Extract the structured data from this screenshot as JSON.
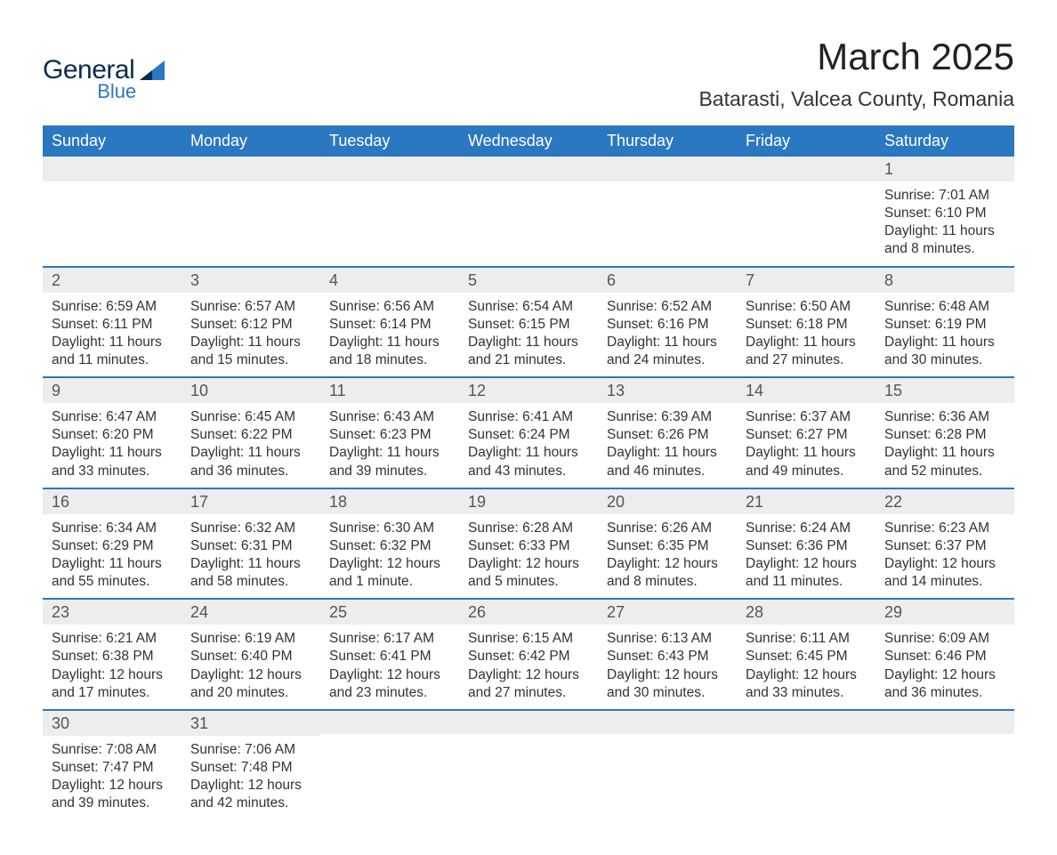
{
  "colors": {
    "header_bg": "#2b78c2",
    "header_text": "#ffffff",
    "bar_bg": "#ededed",
    "bar_border": "#2b78c2",
    "day_num_text": "#555555",
    "body_text": "#333333",
    "logo_dark": "#0b2b50",
    "logo_blue": "#2b78c2",
    "title_text": "#222222",
    "page_bg": "#ffffff"
  },
  "typography": {
    "month_title_size": 42,
    "location_size": 23,
    "header_size": 18,
    "daynum_size": 18,
    "detail_size": 15.5,
    "font_family": "Arial, Helvetica, sans-serif"
  },
  "logo": {
    "line1": "General",
    "line2": "Blue"
  },
  "title": "March 2025",
  "location": "Batarasti, Valcea County, Romania",
  "day_headers": [
    "Sunday",
    "Monday",
    "Tuesday",
    "Wednesday",
    "Thursday",
    "Friday",
    "Saturday"
  ],
  "weeks": [
    [
      null,
      null,
      null,
      null,
      null,
      null,
      {
        "n": "1",
        "sunrise": "Sunrise: 7:01 AM",
        "sunset": "Sunset: 6:10 PM",
        "daylight": "Daylight: 11 hours and 8 minutes."
      }
    ],
    [
      {
        "n": "2",
        "sunrise": "Sunrise: 6:59 AM",
        "sunset": "Sunset: 6:11 PM",
        "daylight": "Daylight: 11 hours and 11 minutes."
      },
      {
        "n": "3",
        "sunrise": "Sunrise: 6:57 AM",
        "sunset": "Sunset: 6:12 PM",
        "daylight": "Daylight: 11 hours and 15 minutes."
      },
      {
        "n": "4",
        "sunrise": "Sunrise: 6:56 AM",
        "sunset": "Sunset: 6:14 PM",
        "daylight": "Daylight: 11 hours and 18 minutes."
      },
      {
        "n": "5",
        "sunrise": "Sunrise: 6:54 AM",
        "sunset": "Sunset: 6:15 PM",
        "daylight": "Daylight: 11 hours and 21 minutes."
      },
      {
        "n": "6",
        "sunrise": "Sunrise: 6:52 AM",
        "sunset": "Sunset: 6:16 PM",
        "daylight": "Daylight: 11 hours and 24 minutes."
      },
      {
        "n": "7",
        "sunrise": "Sunrise: 6:50 AM",
        "sunset": "Sunset: 6:18 PM",
        "daylight": "Daylight: 11 hours and 27 minutes."
      },
      {
        "n": "8",
        "sunrise": "Sunrise: 6:48 AM",
        "sunset": "Sunset: 6:19 PM",
        "daylight": "Daylight: 11 hours and 30 minutes."
      }
    ],
    [
      {
        "n": "9",
        "sunrise": "Sunrise: 6:47 AM",
        "sunset": "Sunset: 6:20 PM",
        "daylight": "Daylight: 11 hours and 33 minutes."
      },
      {
        "n": "10",
        "sunrise": "Sunrise: 6:45 AM",
        "sunset": "Sunset: 6:22 PM",
        "daylight": "Daylight: 11 hours and 36 minutes."
      },
      {
        "n": "11",
        "sunrise": "Sunrise: 6:43 AM",
        "sunset": "Sunset: 6:23 PM",
        "daylight": "Daylight: 11 hours and 39 minutes."
      },
      {
        "n": "12",
        "sunrise": "Sunrise: 6:41 AM",
        "sunset": "Sunset: 6:24 PM",
        "daylight": "Daylight: 11 hours and 43 minutes."
      },
      {
        "n": "13",
        "sunrise": "Sunrise: 6:39 AM",
        "sunset": "Sunset: 6:26 PM",
        "daylight": "Daylight: 11 hours and 46 minutes."
      },
      {
        "n": "14",
        "sunrise": "Sunrise: 6:37 AM",
        "sunset": "Sunset: 6:27 PM",
        "daylight": "Daylight: 11 hours and 49 minutes."
      },
      {
        "n": "15",
        "sunrise": "Sunrise: 6:36 AM",
        "sunset": "Sunset: 6:28 PM",
        "daylight": "Daylight: 11 hours and 52 minutes."
      }
    ],
    [
      {
        "n": "16",
        "sunrise": "Sunrise: 6:34 AM",
        "sunset": "Sunset: 6:29 PM",
        "daylight": "Daylight: 11 hours and 55 minutes."
      },
      {
        "n": "17",
        "sunrise": "Sunrise: 6:32 AM",
        "sunset": "Sunset: 6:31 PM",
        "daylight": "Daylight: 11 hours and 58 minutes."
      },
      {
        "n": "18",
        "sunrise": "Sunrise: 6:30 AM",
        "sunset": "Sunset: 6:32 PM",
        "daylight": "Daylight: 12 hours and 1 minute."
      },
      {
        "n": "19",
        "sunrise": "Sunrise: 6:28 AM",
        "sunset": "Sunset: 6:33 PM",
        "daylight": "Daylight: 12 hours and 5 minutes."
      },
      {
        "n": "20",
        "sunrise": "Sunrise: 6:26 AM",
        "sunset": "Sunset: 6:35 PM",
        "daylight": "Daylight: 12 hours and 8 minutes."
      },
      {
        "n": "21",
        "sunrise": "Sunrise: 6:24 AM",
        "sunset": "Sunset: 6:36 PM",
        "daylight": "Daylight: 12 hours and 11 minutes."
      },
      {
        "n": "22",
        "sunrise": "Sunrise: 6:23 AM",
        "sunset": "Sunset: 6:37 PM",
        "daylight": "Daylight: 12 hours and 14 minutes."
      }
    ],
    [
      {
        "n": "23",
        "sunrise": "Sunrise: 6:21 AM",
        "sunset": "Sunset: 6:38 PM",
        "daylight": "Daylight: 12 hours and 17 minutes."
      },
      {
        "n": "24",
        "sunrise": "Sunrise: 6:19 AM",
        "sunset": "Sunset: 6:40 PM",
        "daylight": "Daylight: 12 hours and 20 minutes."
      },
      {
        "n": "25",
        "sunrise": "Sunrise: 6:17 AM",
        "sunset": "Sunset: 6:41 PM",
        "daylight": "Daylight: 12 hours and 23 minutes."
      },
      {
        "n": "26",
        "sunrise": "Sunrise: 6:15 AM",
        "sunset": "Sunset: 6:42 PM",
        "daylight": "Daylight: 12 hours and 27 minutes."
      },
      {
        "n": "27",
        "sunrise": "Sunrise: 6:13 AM",
        "sunset": "Sunset: 6:43 PM",
        "daylight": "Daylight: 12 hours and 30 minutes."
      },
      {
        "n": "28",
        "sunrise": "Sunrise: 6:11 AM",
        "sunset": "Sunset: 6:45 PM",
        "daylight": "Daylight: 12 hours and 33 minutes."
      },
      {
        "n": "29",
        "sunrise": "Sunrise: 6:09 AM",
        "sunset": "Sunset: 6:46 PM",
        "daylight": "Daylight: 12 hours and 36 minutes."
      }
    ],
    [
      {
        "n": "30",
        "sunrise": "Sunrise: 7:08 AM",
        "sunset": "Sunset: 7:47 PM",
        "daylight": "Daylight: 12 hours and 39 minutes."
      },
      {
        "n": "31",
        "sunrise": "Sunrise: 7:06 AM",
        "sunset": "Sunset: 7:48 PM",
        "daylight": "Daylight: 12 hours and 42 minutes."
      },
      null,
      null,
      null,
      null,
      null
    ]
  ]
}
